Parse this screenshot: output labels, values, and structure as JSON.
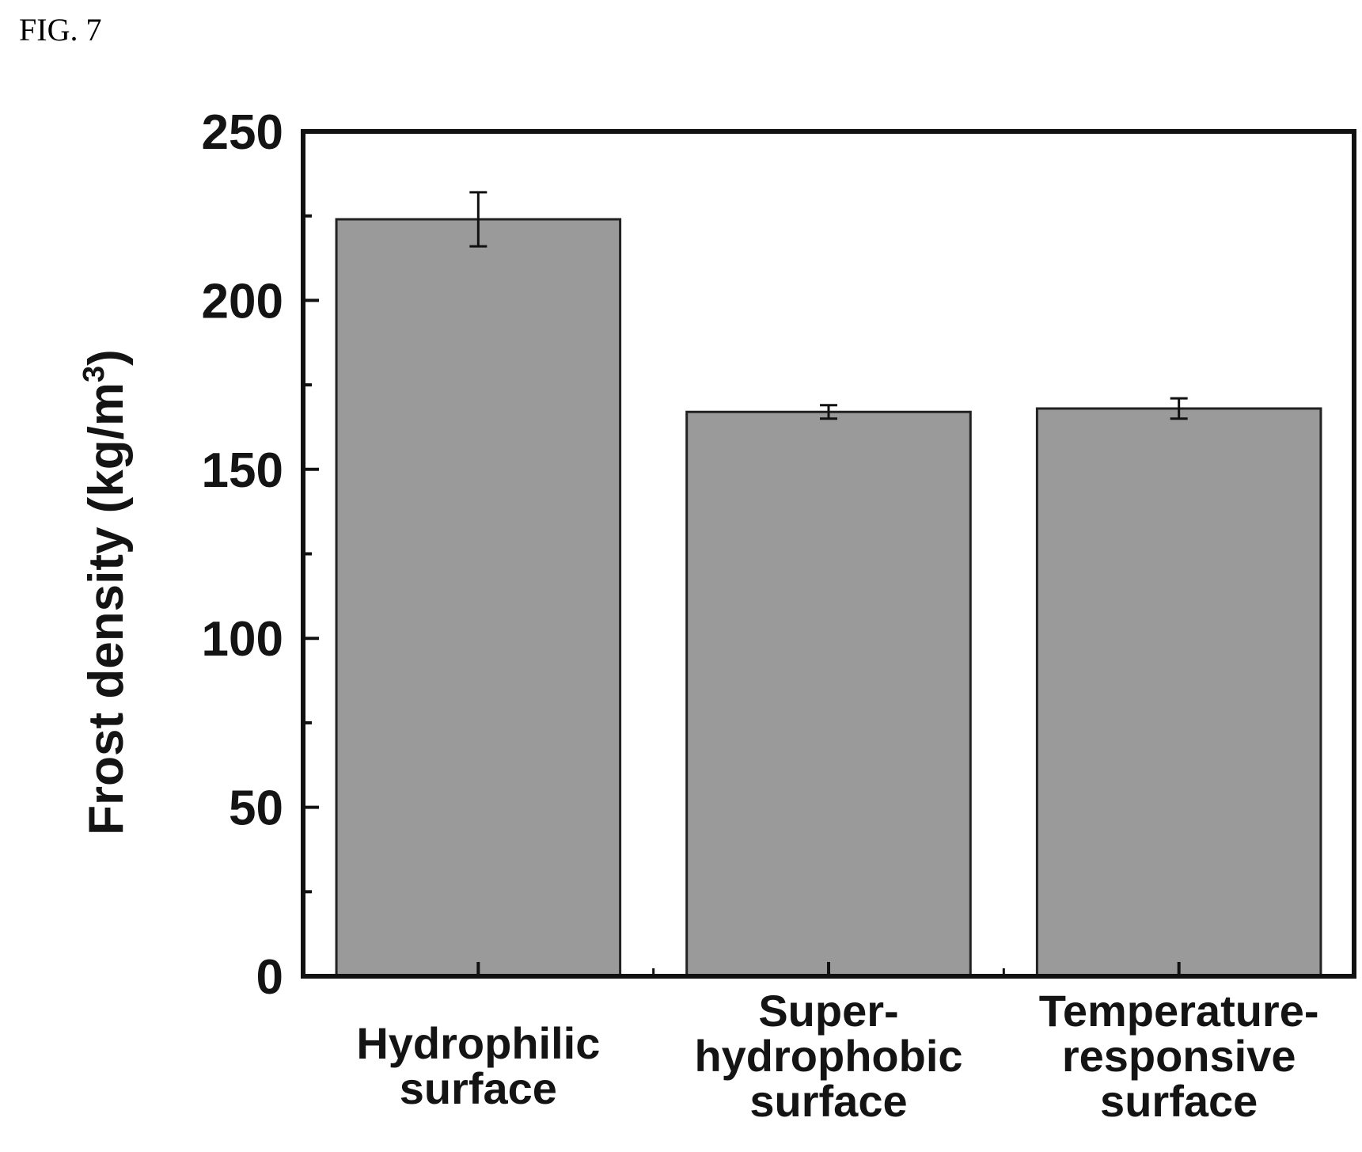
{
  "figure_label": "FIG. 7",
  "chart_data": {
    "type": "bar",
    "categories": [
      [
        "Hydrophilic",
        "surface"
      ],
      [
        "Super-",
        "hydrophobic",
        "surface"
      ],
      [
        "Temperature-",
        "responsive",
        "surface"
      ]
    ],
    "values": [
      224,
      167,
      168
    ],
    "error": [
      8,
      2,
      3
    ],
    "ylabel": "Frost density (kg/m",
    "ylabel_sup": "3",
    "ylabel_close": ")",
    "ylim": [
      0,
      250
    ],
    "yticks": [
      0,
      50,
      100,
      150,
      200,
      250
    ],
    "bar_color": "#9a9a9a",
    "grid": false
  }
}
